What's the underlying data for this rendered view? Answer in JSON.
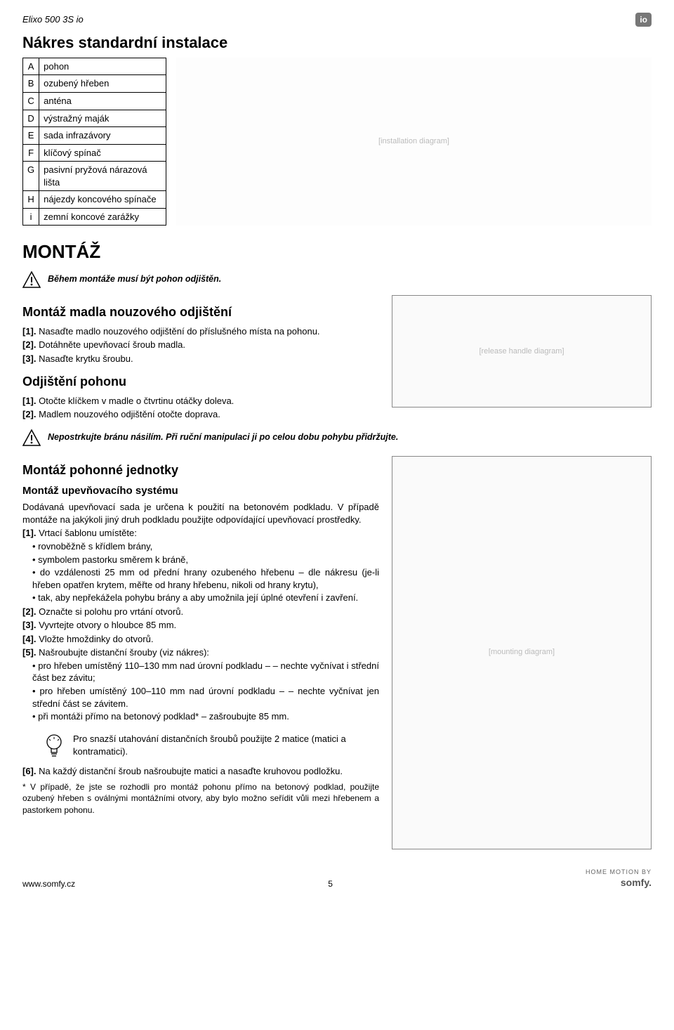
{
  "header": {
    "product": "Elixo 500 3S io",
    "io_badge": "io"
  },
  "section_nakres": {
    "title": "Nákres standardní instalace",
    "legend": [
      {
        "k": "A",
        "v": "pohon"
      },
      {
        "k": "B",
        "v": "ozubený hřeben"
      },
      {
        "k": "C",
        "v": "anténa"
      },
      {
        "k": "D",
        "v": "výstražný maják"
      },
      {
        "k": "E",
        "v": "sada infrazávory"
      },
      {
        "k": "F",
        "v": "klíčový spínač"
      },
      {
        "k": "G",
        "v": "pasivní pryžová nárazová lišta"
      },
      {
        "k": "H",
        "v": "nájezdy koncového spínače"
      },
      {
        "k": "i",
        "v": "zemní koncové zarážky"
      }
    ],
    "diagram_alt": "[installation diagram]"
  },
  "section_montaz": {
    "title": "MONTÁŽ",
    "warn1": "Během montáže musí být pohon odjištěn.",
    "sub1": {
      "title": "Montáž madla nouzového odjištění",
      "steps": [
        "Nasaďte madlo nouzového odjištění do příslušného místa na pohonu.",
        "Dotáhněte upevňovací šroub madla.",
        "Nasaďte krytku šroubu."
      ]
    },
    "sub2": {
      "title": "Odjištění pohonu",
      "steps": [
        "Otočte klíčkem v madle o čtvrtinu otáčky doleva.",
        "Madlem nouzového odjištění otočte doprava."
      ]
    },
    "warn2": "Nepostrkujte bránu násilím. Při ruční manipulaci ji po celou dobu pohybu přidržujte.",
    "drive_img_alt": "[release handle diagram]",
    "sub3": {
      "title": "Montáž pohonné jednotky",
      "subtitle": "Montáž upevňovacího systému",
      "intro": "Dodávaná upevňovací sada je určena k použití na betonovém podkladu. V případě montáže na jakýkoli jiný druh podkladu použijte odpovídající upevňovací prostředky.",
      "step1_lead": "Vrtací šablonu umístěte:",
      "step1_bullets": [
        "rovnoběžně s křídlem brány,",
        "symbolem pastorku směrem k bráně,",
        "do vzdálenosti 25 mm od přední hrany ozubeného hřebenu – dle nákresu (je-li hřeben opatřen krytem, měřte od hrany hřebenu, nikoli od hrany krytu),",
        "tak, aby nepřekážela pohybu brány a aby umožnila její úplné otevření i zavření."
      ],
      "step2": "Označte si polohu pro vrtání otvorů.",
      "step3": "Vyvrtejte otvory o hloubce 85 mm.",
      "step4": "Vložte hmoždinky do otvorů.",
      "step5_lead": "Našroubujte distanční šrouby (viz nákres):",
      "step5_bullets": [
        "pro hřeben umístěný 110–130 mm nad úrovní podkladu – – nechte vyčnívat i střední část bez závitu;",
        "pro hřeben umístěný 100–110 mm nad úrovní podkladu – – nechte vyčnívat jen střední část se závitem.",
        "při montáži přímo na betonový podklad* – zašroubujte 85 mm."
      ],
      "tip": "Pro snazší utahování distančních šroubů použijte 2 matice (matici a kontramatici).",
      "step6": "Na každý distanční šroub našroubujte matici a nasaďte kruhovou podložku.",
      "footnote": "* V případě, že jste se rozhodli pro montáž pohonu přímo na betonový podklad, použijte ozubený hřeben s oválnými montážními otvory, aby bylo možno seřídit vůli mezi hřebenem a pastorkem pohonu.",
      "mount_img_alt": "[mounting diagram]"
    }
  },
  "step_labels": {
    "s1": "[1].",
    "s2": "[2].",
    "s3": "[3].",
    "s4": "[4].",
    "s5": "[5].",
    "s6": "[6]."
  },
  "footer": {
    "url": "www.somfy.cz",
    "page": "5",
    "brand": "somfy.",
    "sub": "HOME MOTION BY"
  }
}
